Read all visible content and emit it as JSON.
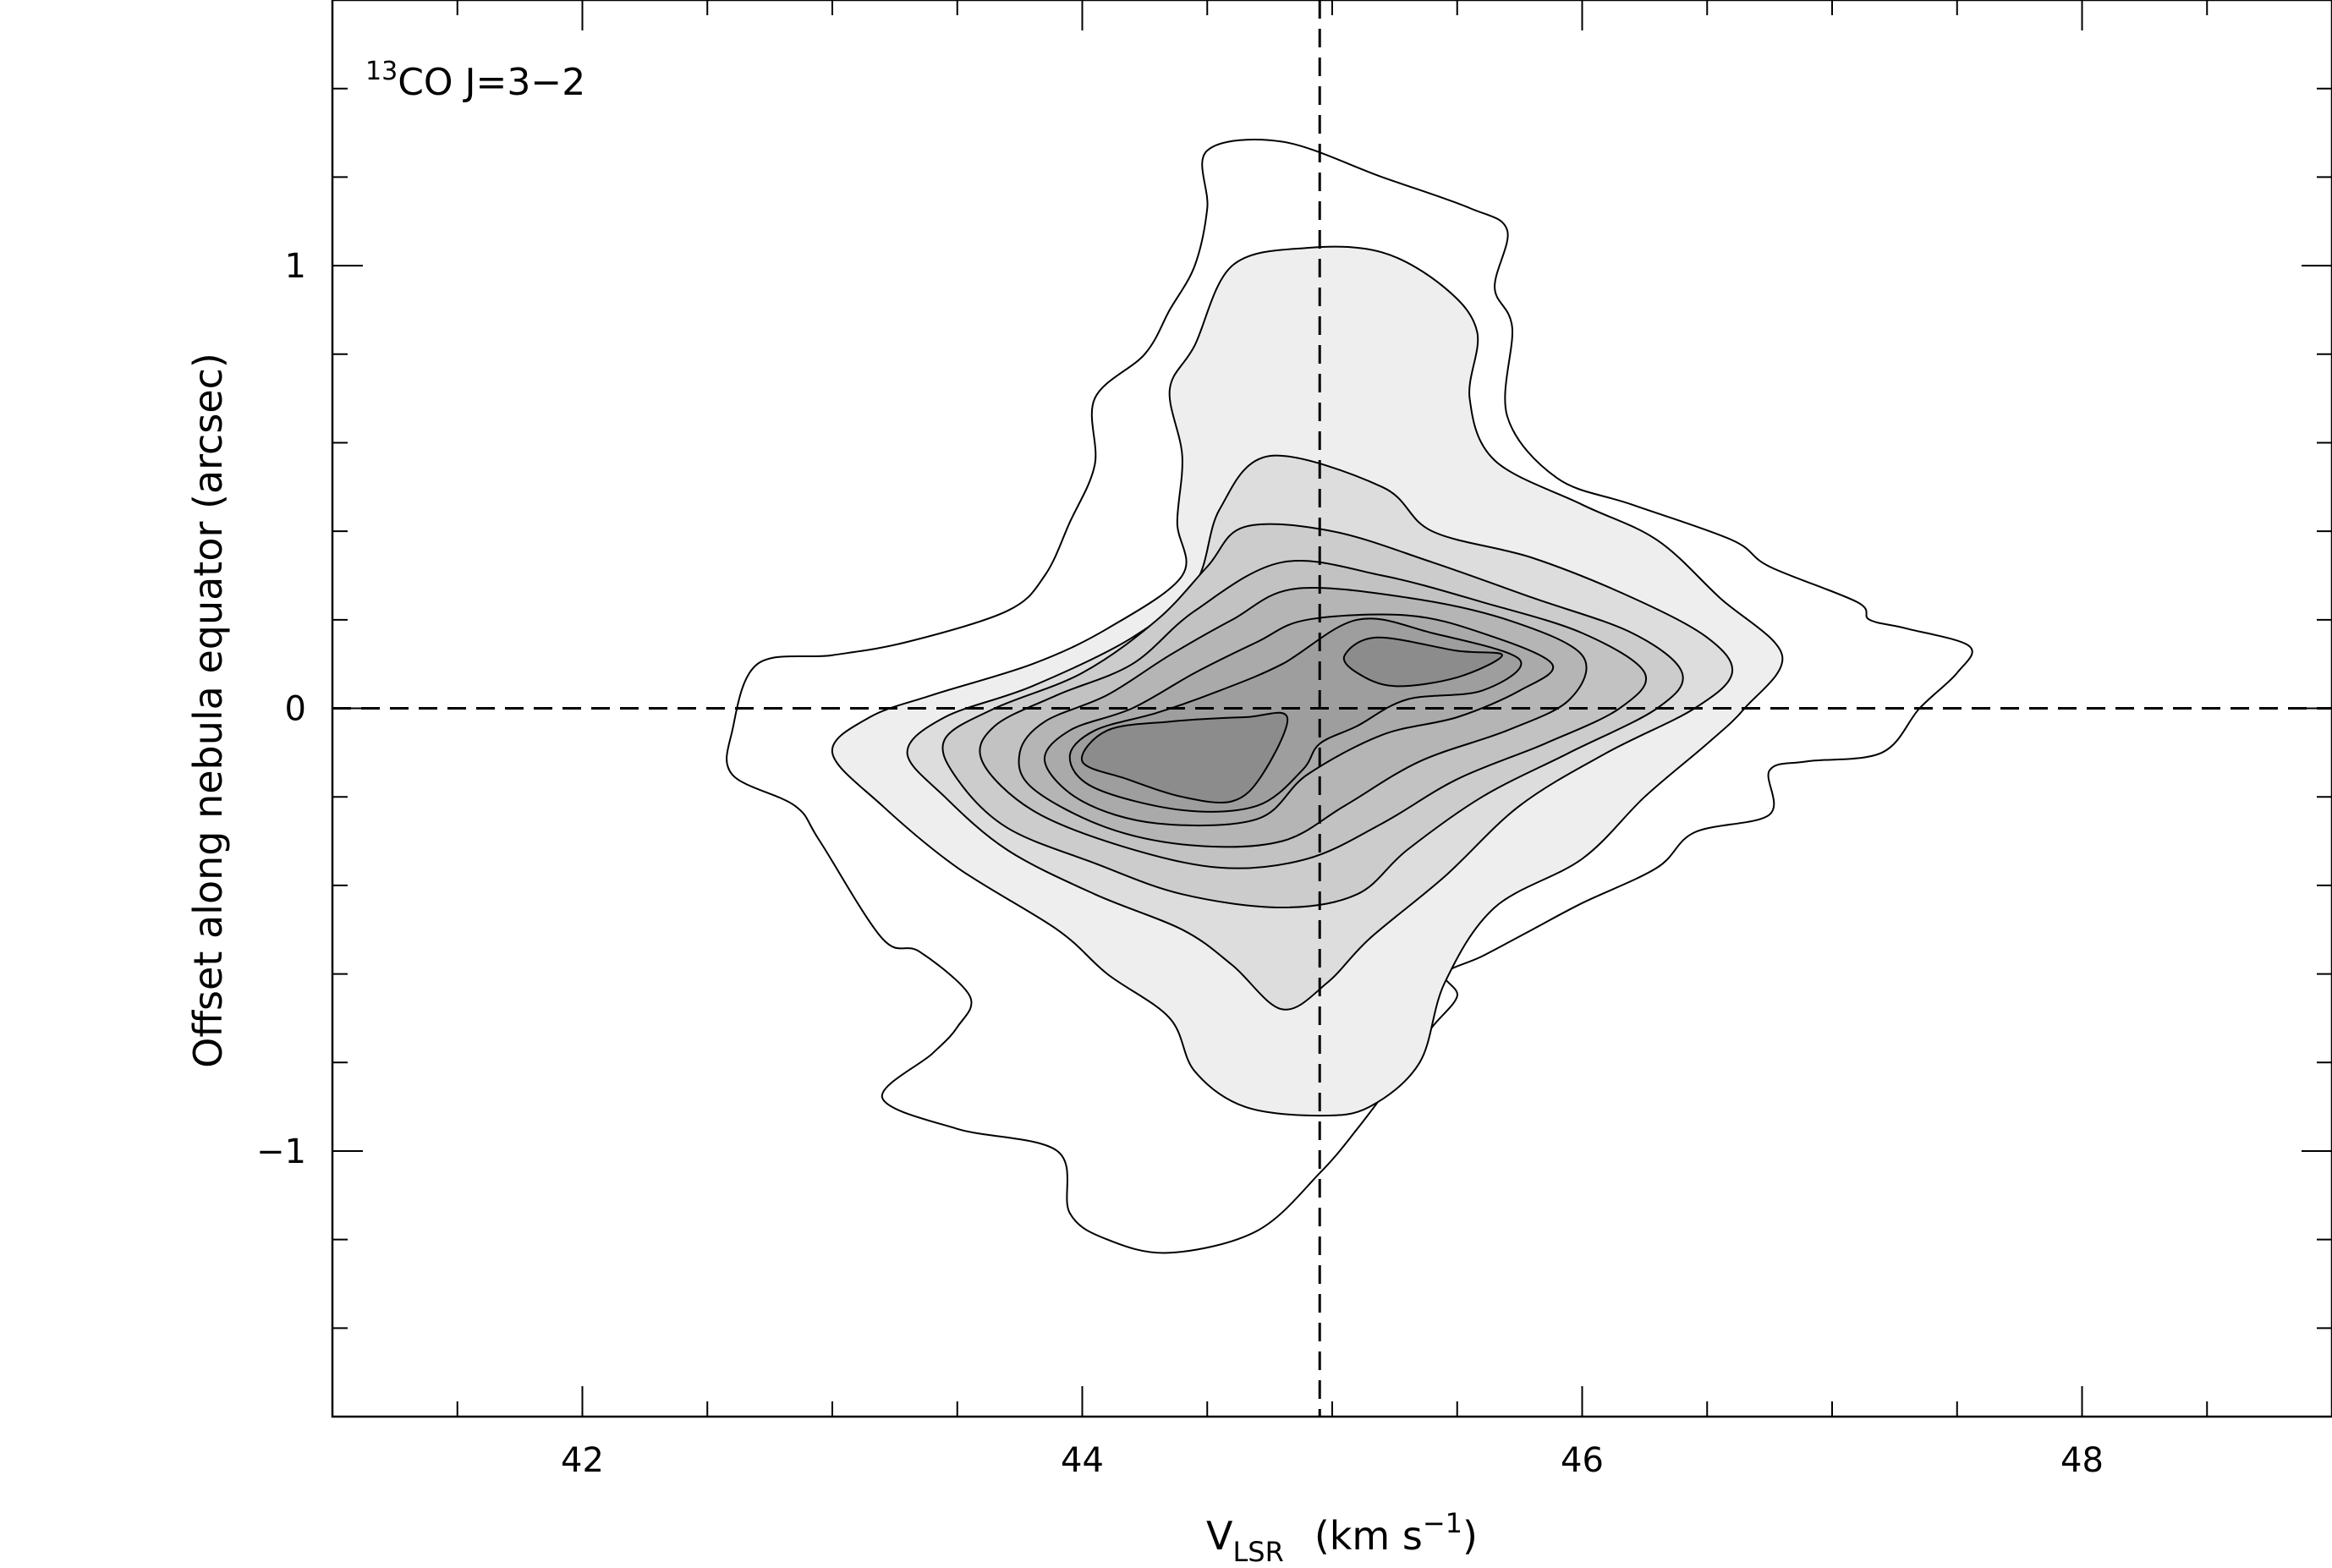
{
  "chart_data": {
    "type": "contour",
    "annotation": {
      "sup": "13",
      "main": "CO J=3−2"
    },
    "xlabel": {
      "main": "V",
      "sub": "LSR",
      "unit_main": "(km s",
      "unit_sup": "−1",
      "unit_close": ")"
    },
    "ylabel": "Offset along nebula equator (arcsec)",
    "xlim": [
      41.0,
      49.0
    ],
    "ylim": [
      -1.6,
      1.6
    ],
    "x_ticks": [
      {
        "value": 42,
        "label": "42"
      },
      {
        "value": 44,
        "label": "44"
      },
      {
        "value": 46,
        "label": "46"
      },
      {
        "value": 48,
        "label": "48"
      }
    ],
    "y_ticks": [
      {
        "value": -1,
        "label": "−1"
      },
      {
        "value": 0,
        "label": "0"
      },
      {
        "value": 1,
        "label": "1"
      }
    ],
    "x_minor_step": 0.5,
    "y_minor_step": 0.2,
    "reference_lines": {
      "x": 44.95,
      "y": 0.0,
      "style": "dashed"
    },
    "fill_colors": [
      "#ffffff",
      "#eeeeee",
      "#dddddd",
      "#cccccc",
      "#c2c2c2",
      "#b5b5b5",
      "#aaaaaa",
      "#9e9e9e",
      "#8c8c8c"
    ],
    "contours": [
      {
        "level": 1,
        "points": [
          [
            44.5,
            1.26
          ],
          [
            44.8,
            1.28
          ],
          [
            45.2,
            1.2
          ],
          [
            45.55,
            1.13
          ],
          [
            45.7,
            1.08
          ],
          [
            45.65,
            0.95
          ],
          [
            45.72,
            0.86
          ],
          [
            45.7,
            0.66
          ],
          [
            45.9,
            0.52
          ],
          [
            46.2,
            0.46
          ],
          [
            46.6,
            0.38
          ],
          [
            46.75,
            0.32
          ],
          [
            47.1,
            0.24
          ],
          [
            47.15,
            0.2
          ],
          [
            47.3,
            0.18
          ],
          [
            47.55,
            0.14
          ],
          [
            47.5,
            0.08
          ],
          [
            47.35,
            0.0
          ],
          [
            47.2,
            -0.1
          ],
          [
            46.9,
            -0.12
          ],
          [
            46.75,
            -0.14
          ],
          [
            46.75,
            -0.24
          ],
          [
            46.45,
            -0.28
          ],
          [
            46.3,
            -0.36
          ],
          [
            46.0,
            -0.44
          ],
          [
            45.8,
            -0.5
          ],
          [
            45.6,
            -0.56
          ],
          [
            45.45,
            -0.6
          ],
          [
            45.5,
            -0.65
          ],
          [
            45.4,
            -0.72
          ],
          [
            45.3,
            -0.8
          ],
          [
            45.1,
            -0.95
          ],
          [
            44.95,
            -1.05
          ],
          [
            44.7,
            -1.18
          ],
          [
            44.35,
            -1.23
          ],
          [
            44.1,
            -1.2
          ],
          [
            43.95,
            -1.14
          ],
          [
            43.9,
            -1.0
          ],
          [
            43.5,
            -0.95
          ],
          [
            43.2,
            -0.88
          ],
          [
            43.4,
            -0.78
          ],
          [
            43.5,
            -0.72
          ],
          [
            43.55,
            -0.65
          ],
          [
            43.35,
            -0.55
          ],
          [
            43.2,
            -0.52
          ],
          [
            42.95,
            -0.3
          ],
          [
            42.85,
            -0.22
          ],
          [
            42.6,
            -0.15
          ],
          [
            42.6,
            -0.05
          ],
          [
            42.7,
            0.1
          ],
          [
            43.0,
            0.12
          ],
          [
            43.3,
            0.15
          ],
          [
            43.7,
            0.22
          ],
          [
            43.85,
            0.3
          ],
          [
            43.95,
            0.42
          ],
          [
            44.05,
            0.55
          ],
          [
            44.05,
            0.7
          ],
          [
            44.25,
            0.8
          ],
          [
            44.35,
            0.9
          ],
          [
            44.45,
            1.0
          ],
          [
            44.5,
            1.13
          ]
        ]
      },
      {
        "level": 2,
        "points": [
          [
            44.6,
            1.0
          ],
          [
            44.9,
            1.04
          ],
          [
            45.2,
            1.03
          ],
          [
            45.45,
            0.95
          ],
          [
            45.58,
            0.85
          ],
          [
            45.55,
            0.7
          ],
          [
            45.65,
            0.56
          ],
          [
            46.0,
            0.46
          ],
          [
            46.3,
            0.38
          ],
          [
            46.55,
            0.25
          ],
          [
            46.8,
            0.12
          ],
          [
            46.65,
            0.0
          ],
          [
            46.5,
            -0.08
          ],
          [
            46.25,
            -0.2
          ],
          [
            46.0,
            -0.34
          ],
          [
            45.65,
            -0.45
          ],
          [
            45.45,
            -0.62
          ],
          [
            45.35,
            -0.8
          ],
          [
            45.15,
            -0.9
          ],
          [
            44.95,
            -0.92
          ],
          [
            44.65,
            -0.9
          ],
          [
            44.45,
            -0.82
          ],
          [
            44.35,
            -0.7
          ],
          [
            44.1,
            -0.6
          ],
          [
            43.9,
            -0.5
          ],
          [
            43.5,
            -0.36
          ],
          [
            43.2,
            -0.22
          ],
          [
            43.0,
            -0.1
          ],
          [
            43.15,
            -0.02
          ],
          [
            43.4,
            0.03
          ],
          [
            43.8,
            0.1
          ],
          [
            44.1,
            0.18
          ],
          [
            44.4,
            0.3
          ],
          [
            44.38,
            0.42
          ],
          [
            44.4,
            0.57
          ],
          [
            44.35,
            0.72
          ],
          [
            44.45,
            0.82
          ]
        ]
      },
      {
        "level": 3,
        "points": [
          [
            44.75,
            0.57
          ],
          [
            45.2,
            0.5
          ],
          [
            45.4,
            0.4
          ],
          [
            45.8,
            0.34
          ],
          [
            46.2,
            0.25
          ],
          [
            46.5,
            0.16
          ],
          [
            46.6,
            0.08
          ],
          [
            46.45,
            0.0
          ],
          [
            46.1,
            -0.1
          ],
          [
            45.75,
            -0.22
          ],
          [
            45.45,
            -0.38
          ],
          [
            45.15,
            -0.52
          ],
          [
            44.98,
            -0.62
          ],
          [
            44.8,
            -0.68
          ],
          [
            44.6,
            -0.58
          ],
          [
            44.4,
            -0.5
          ],
          [
            44.05,
            -0.42
          ],
          [
            43.7,
            -0.32
          ],
          [
            43.45,
            -0.2
          ],
          [
            43.3,
            -0.1
          ],
          [
            43.45,
            -0.02
          ],
          [
            43.8,
            0.05
          ],
          [
            44.2,
            0.16
          ],
          [
            44.45,
            0.28
          ],
          [
            44.55,
            0.45
          ]
        ]
      },
      {
        "level": 4,
        "points": [
          [
            44.65,
            0.41
          ],
          [
            45.0,
            0.4
          ],
          [
            45.4,
            0.33
          ],
          [
            45.8,
            0.25
          ],
          [
            46.2,
            0.17
          ],
          [
            46.4,
            0.08
          ],
          [
            46.3,
            0.0
          ],
          [
            45.95,
            -0.1
          ],
          [
            45.6,
            -0.2
          ],
          [
            45.3,
            -0.32
          ],
          [
            45.1,
            -0.42
          ],
          [
            44.8,
            -0.45
          ],
          [
            44.4,
            -0.42
          ],
          [
            44.05,
            -0.35
          ],
          [
            43.7,
            -0.27
          ],
          [
            43.5,
            -0.16
          ],
          [
            43.45,
            -0.07
          ],
          [
            43.65,
            0.0
          ],
          [
            44.0,
            0.08
          ],
          [
            44.3,
            0.2
          ],
          [
            44.5,
            0.32
          ]
        ]
      },
      {
        "level": 5,
        "points": [
          [
            44.8,
            0.33
          ],
          [
            45.2,
            0.3
          ],
          [
            45.6,
            0.24
          ],
          [
            46.0,
            0.17
          ],
          [
            46.25,
            0.08
          ],
          [
            46.15,
            0.0
          ],
          [
            45.85,
            -0.08
          ],
          [
            45.5,
            -0.16
          ],
          [
            45.2,
            -0.26
          ],
          [
            44.9,
            -0.34
          ],
          [
            44.55,
            -0.36
          ],
          [
            44.15,
            -0.31
          ],
          [
            43.8,
            -0.23
          ],
          [
            43.6,
            -0.12
          ],
          [
            43.65,
            -0.04
          ],
          [
            43.9,
            0.03
          ],
          [
            44.2,
            0.1
          ],
          [
            44.45,
            0.22
          ]
        ]
      },
      {
        "level": 6,
        "points": [
          [
            44.85,
            0.27
          ],
          [
            45.3,
            0.25
          ],
          [
            45.7,
            0.2
          ],
          [
            46.0,
            0.12
          ],
          [
            45.95,
            0.02
          ],
          [
            45.7,
            -0.05
          ],
          [
            45.35,
            -0.12
          ],
          [
            45.05,
            -0.22
          ],
          [
            44.8,
            -0.3
          ],
          [
            44.45,
            -0.31
          ],
          [
            44.1,
            -0.27
          ],
          [
            43.8,
            -0.18
          ],
          [
            43.75,
            -0.1
          ],
          [
            43.85,
            -0.03
          ],
          [
            44.1,
            0.03
          ],
          [
            44.35,
            0.12
          ],
          [
            44.6,
            0.2
          ]
        ]
      },
      {
        "level": 7,
        "points": [
          [
            44.9,
            0.2
          ],
          [
            45.3,
            0.21
          ],
          [
            45.6,
            0.17
          ],
          [
            45.88,
            0.1
          ],
          [
            45.75,
            0.04
          ],
          [
            45.5,
            -0.02
          ],
          [
            45.2,
            -0.06
          ],
          [
            44.9,
            -0.15
          ],
          [
            44.7,
            -0.25
          ],
          [
            44.3,
            -0.26
          ],
          [
            44.0,
            -0.21
          ],
          [
            43.85,
            -0.12
          ],
          [
            43.95,
            -0.05
          ],
          [
            44.2,
            0.0
          ],
          [
            44.45,
            0.08
          ],
          [
            44.7,
            0.15
          ]
        ]
      },
      {
        "level": 8,
        "points": [
          [
            45.1,
            0.2
          ],
          [
            45.4,
            0.17
          ],
          [
            45.75,
            0.11
          ],
          [
            45.6,
            0.04
          ],
          [
            45.3,
            0.02
          ],
          [
            45.1,
            -0.04
          ],
          [
            44.95,
            -0.08
          ],
          [
            44.88,
            -0.14
          ],
          [
            44.7,
            -0.22
          ],
          [
            44.4,
            -0.23
          ],
          [
            44.05,
            -0.18
          ],
          [
            43.95,
            -0.11
          ],
          [
            44.05,
            -0.05
          ],
          [
            44.3,
            -0.01
          ],
          [
            44.55,
            0.04
          ],
          [
            44.8,
            0.1
          ]
        ]
      },
      {
        "level": 9,
        "points": [
          [
            44.82,
            -0.02
          ],
          [
            44.72,
            -0.15
          ],
          [
            44.6,
            -0.21
          ],
          [
            44.4,
            -0.2
          ],
          [
            44.18,
            -0.16
          ],
          [
            44.0,
            -0.12
          ],
          [
            44.1,
            -0.05
          ],
          [
            44.35,
            -0.03
          ],
          [
            44.65,
            -0.02
          ]
        ]
      },
      {
        "level": 9,
        "points": [
          [
            45.18,
            0.16
          ],
          [
            45.5,
            0.13
          ],
          [
            45.68,
            0.12
          ],
          [
            45.5,
            0.07
          ],
          [
            45.25,
            0.05
          ],
          [
            45.1,
            0.08
          ],
          [
            45.05,
            0.12
          ]
        ]
      }
    ]
  }
}
